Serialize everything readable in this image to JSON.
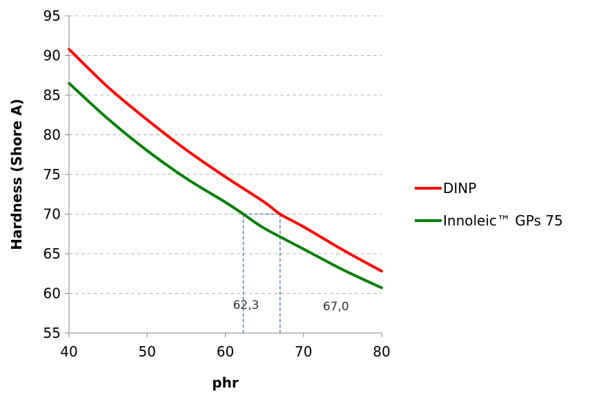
{
  "chart_data": {
    "type": "line",
    "title": "",
    "xlabel": "phr",
    "ylabel": "Hardness (Shore A)",
    "xlim": [
      40,
      80
    ],
    "ylim": [
      55,
      95
    ],
    "xticks": [
      40,
      50,
      60,
      70,
      80
    ],
    "yticks": [
      55,
      60,
      65,
      70,
      75,
      80,
      85,
      90,
      95
    ],
    "grid": "horizontal dashed",
    "legend_position": "right",
    "series": [
      {
        "name": "DINP",
        "color": "#ff0000",
        "x": [
          40,
          45,
          50,
          55,
          60,
          65,
          67,
          70,
          75,
          80
        ],
        "y": [
          90.8,
          86.0,
          81.9,
          78.1,
          74.7,
          71.5,
          70.0,
          68.4,
          65.5,
          62.8
        ]
      },
      {
        "name": "Innoleic™ GPs 75",
        "color": "#008000",
        "x": [
          40,
          45,
          50,
          55,
          60,
          62.3,
          65,
          70,
          75,
          80
        ],
        "y": [
          86.5,
          82.0,
          78.0,
          74.5,
          71.5,
          70.0,
          68.2,
          65.6,
          63.0,
          60.7
        ]
      }
    ],
    "annotations": [
      {
        "label": "62,3",
        "x": 62.3,
        "y_ref": 70
      },
      {
        "label": "67,0",
        "x": 67.0,
        "y_ref": 70
      }
    ],
    "reference_line_color": "#4f81bd"
  }
}
